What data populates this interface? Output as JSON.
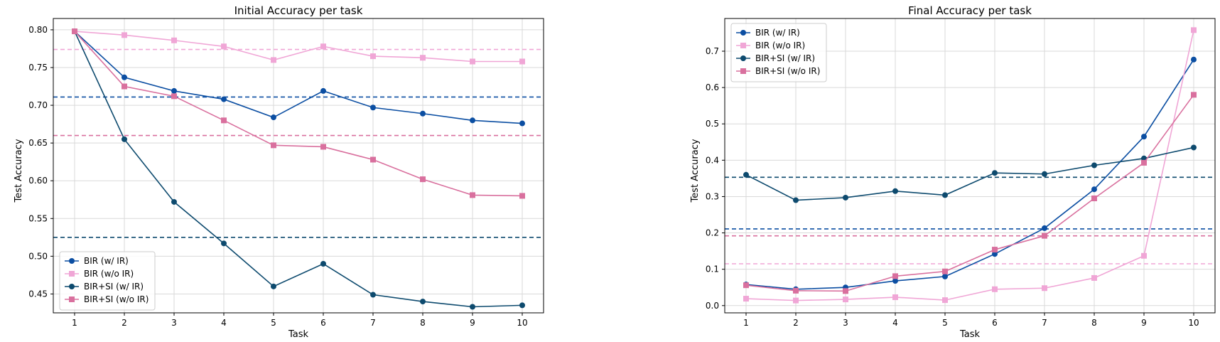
{
  "chart_data": [
    {
      "type": "line",
      "title": "Initial Accuracy per task",
      "xlabel": "Task",
      "ylabel": "Test Accuracy",
      "x": [
        1,
        2,
        3,
        4,
        5,
        6,
        7,
        8,
        9,
        10
      ],
      "xticks": [
        "1",
        "2",
        "3",
        "4",
        "5",
        "6",
        "7",
        "8",
        "9",
        "10"
      ],
      "ylim": [
        0.425,
        0.815
      ],
      "yticks": [
        "0.45",
        "0.50",
        "0.55",
        "0.60",
        "0.65",
        "0.70",
        "0.75",
        "0.80"
      ],
      "grid": true,
      "legend_position": "lower-left",
      "series": [
        {
          "name": "BIR (w/ IR)",
          "marker": "circle",
          "color": "#0b4ea2",
          "mean": 0.711,
          "values": [
            0.798,
            0.737,
            0.719,
            0.708,
            0.684,
            0.719,
            0.697,
            0.689,
            0.68,
            0.676
          ]
        },
        {
          "name": "BIR (w/o IR)",
          "marker": "square",
          "color": "#f0a6d6",
          "mean": 0.774,
          "values": [
            0.798,
            0.793,
            0.786,
            0.778,
            0.76,
            0.778,
            0.765,
            0.763,
            0.758,
            0.758
          ]
        },
        {
          "name": "BIR+SI (w/ IR)",
          "marker": "circle",
          "color": "#0d4a6e",
          "mean": 0.525,
          "values": [
            0.798,
            0.655,
            0.572,
            0.517,
            0.46,
            0.49,
            0.449,
            0.44,
            0.433,
            0.435
          ]
        },
        {
          "name": "BIR+SI (w/o IR)",
          "marker": "square",
          "color": "#d9709e",
          "mean": 0.66,
          "values": [
            0.798,
            0.725,
            0.712,
            0.68,
            0.647,
            0.645,
            0.628,
            0.602,
            0.581,
            0.58
          ]
        }
      ]
    },
    {
      "type": "line",
      "title": "Final Accuracy per task",
      "xlabel": "Task",
      "ylabel": "Test Accuracy",
      "x": [
        1,
        2,
        3,
        4,
        5,
        6,
        7,
        8,
        9,
        10
      ],
      "xticks": [
        "1",
        "2",
        "3",
        "4",
        "5",
        "6",
        "7",
        "8",
        "9",
        "10"
      ],
      "ylim": [
        -0.02,
        0.79
      ],
      "yticks": [
        "0.0",
        "0.1",
        "0.2",
        "0.3",
        "0.4",
        "0.5",
        "0.6",
        "0.7"
      ],
      "grid": true,
      "legend_position": "upper-left",
      "series": [
        {
          "name": "BIR (w/ IR)",
          "marker": "circle",
          "color": "#0b4ea2",
          "mean": 0.211,
          "values": [
            0.058,
            0.045,
            0.05,
            0.068,
            0.08,
            0.142,
            0.213,
            0.32,
            0.465,
            0.677
          ]
        },
        {
          "name": "BIR (w/o IR)",
          "marker": "square",
          "color": "#f0a6d6",
          "mean": 0.115,
          "values": [
            0.019,
            0.014,
            0.017,
            0.023,
            0.015,
            0.045,
            0.048,
            0.076,
            0.137,
            0.758
          ]
        },
        {
          "name": "BIR+SI (w/ IR)",
          "marker": "circle",
          "color": "#0d4a6e",
          "mean": 0.353,
          "values": [
            0.36,
            0.29,
            0.297,
            0.315,
            0.304,
            0.365,
            0.362,
            0.386,
            0.405,
            0.435
          ]
        },
        {
          "name": "BIR+SI (w/o IR)",
          "marker": "square",
          "color": "#d9709e",
          "mean": 0.192,
          "values": [
            0.056,
            0.041,
            0.04,
            0.081,
            0.094,
            0.154,
            0.192,
            0.295,
            0.393,
            0.58
          ]
        }
      ]
    }
  ]
}
